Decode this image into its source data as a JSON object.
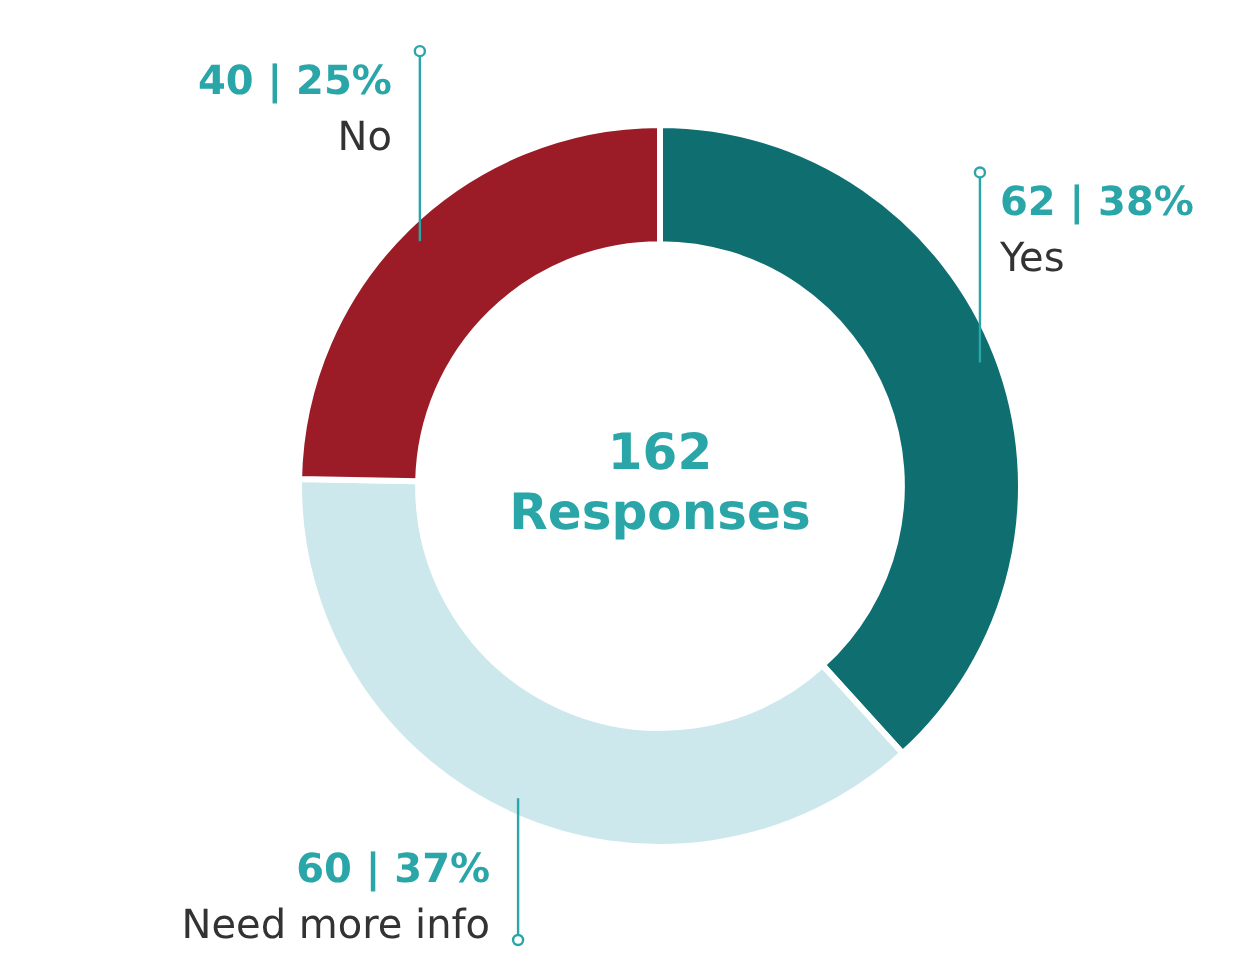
{
  "chart_data": {
    "type": "donut",
    "title": "162 Responses",
    "categories": [
      "Yes",
      "Need more info",
      "No"
    ],
    "values": [
      62,
      60,
      40
    ],
    "colors": [
      "#0e6e70",
      "#cde8ec",
      "#9b1c26"
    ],
    "value_labels": [
      "62 | 38%",
      "60 | 37%",
      "40 | 25%"
    ],
    "legend": false
  }
}
